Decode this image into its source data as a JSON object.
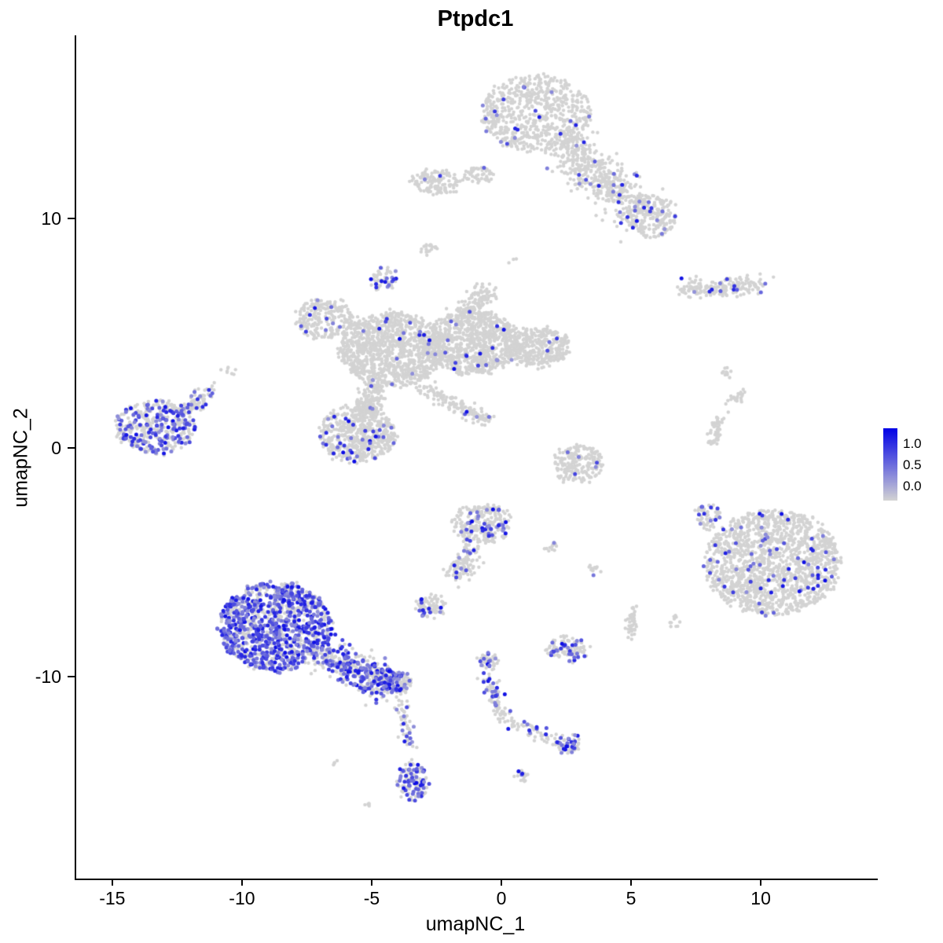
{
  "chart_data": {
    "type": "scatter",
    "title": "Ptpdc1",
    "xlabel": "umapNC_1",
    "ylabel": "umapNC_2",
    "xlim": [
      -16.45,
      14.45
    ],
    "ylim": [
      -18.8,
      18.0
    ],
    "grid": false,
    "point_color_low": "#D3D3D3",
    "point_color_high": "#0000E6",
    "x_ticks": [
      {
        "value": -15,
        "label": "-15"
      },
      {
        "value": -10,
        "label": "-10"
      },
      {
        "value": -5,
        "label": "-5"
      },
      {
        "value": 0,
        "label": "0"
      },
      {
        "value": 5,
        "label": "5"
      },
      {
        "value": 10,
        "label": "10"
      }
    ],
    "y_ticks": [
      {
        "value": 10,
        "label": "10"
      },
      {
        "value": 0,
        "label": "0"
      },
      {
        "value": -10,
        "label": "-10"
      }
    ],
    "legend": {
      "position": "right",
      "ticks": [
        {
          "label": "1.0",
          "pos": 0.21
        },
        {
          "label": "0.5",
          "pos": 0.5
        },
        {
          "label": "0.0",
          "pos": 0.79
        }
      ]
    },
    "clusters": [
      {
        "t": "e",
        "cx": 1.3,
        "cy": 14.6,
        "rx": 2.1,
        "ry": 1.7,
        "n": 650,
        "f": 0.03
      },
      {
        "t": "c",
        "x1": 2.3,
        "y1": 13.4,
        "x2": 5.2,
        "y2": 10.3,
        "r": 1.05,
        "n": 520,
        "f": 0.05
      },
      {
        "t": "e",
        "cx": 5.7,
        "cy": 10.1,
        "rx": 1.0,
        "ry": 0.9,
        "n": 200,
        "f": 0.06
      },
      {
        "t": "e",
        "cx": -2.6,
        "cy": 11.6,
        "rx": 0.95,
        "ry": 0.55,
        "n": 120,
        "f": 0.02
      },
      {
        "t": "e",
        "cx": -0.9,
        "cy": 11.9,
        "rx": 0.55,
        "ry": 0.35,
        "n": 50,
        "f": 0.02
      },
      {
        "t": "e",
        "cx": -2.9,
        "cy": 8.7,
        "rx": 0.3,
        "ry": 0.25,
        "n": 20,
        "f": 0
      },
      {
        "t": "e",
        "cx": -4.6,
        "cy": 7.4,
        "rx": 0.5,
        "ry": 0.45,
        "n": 55,
        "f": 0.3
      },
      {
        "t": "e",
        "cx": -6.9,
        "cy": 5.6,
        "rx": 1.15,
        "ry": 0.85,
        "n": 240,
        "f": 0.05
      },
      {
        "t": "e",
        "cx": -4.3,
        "cy": 4.3,
        "rx": 2.0,
        "ry": 1.6,
        "n": 1100,
        "f": 0.02
      },
      {
        "t": "e",
        "cx": -1.2,
        "cy": 4.6,
        "rx": 1.8,
        "ry": 1.4,
        "n": 900,
        "f": 0.015
      },
      {
        "t": "e",
        "cx": 1.3,
        "cy": 4.4,
        "rx": 1.3,
        "ry": 0.85,
        "n": 380,
        "f": 0.01
      },
      {
        "t": "c",
        "x1": -1.4,
        "y1": 5.9,
        "x2": -0.7,
        "y2": 6.8,
        "r": 0.5,
        "n": 110,
        "f": 0.02
      },
      {
        "t": "e",
        "cx": -5.6,
        "cy": 0.6,
        "rx": 1.5,
        "ry": 1.25,
        "n": 550,
        "f": 0.07
      },
      {
        "t": "c",
        "x1": -4.9,
        "y1": 2.6,
        "x2": -5.5,
        "y2": 1.4,
        "r": 0.55,
        "n": 150,
        "f": 0.03
      },
      {
        "t": "c",
        "x1": -3.2,
        "y1": 2.7,
        "x2": -0.6,
        "y2": 1.2,
        "r": 0.38,
        "n": 140,
        "f": 0.02
      },
      {
        "t": "e",
        "cx": -13.4,
        "cy": 0.9,
        "rx": 1.55,
        "ry": 1.15,
        "n": 420,
        "f": 0.35
      },
      {
        "t": "c",
        "x1": -12.3,
        "y1": 1.7,
        "x2": -11.3,
        "y2": 2.4,
        "r": 0.42,
        "n": 70,
        "f": 0.2
      },
      {
        "t": "e",
        "cx": 2.9,
        "cy": -0.7,
        "rx": 0.95,
        "ry": 0.8,
        "n": 200,
        "f": 0.02
      },
      {
        "t": "e",
        "cx": -0.8,
        "cy": -3.3,
        "rx": 1.15,
        "ry": 0.85,
        "n": 260,
        "f": 0.13
      },
      {
        "t": "c",
        "x1": -1.3,
        "y1": -4.3,
        "x2": -1.8,
        "y2": -5.6,
        "r": 0.45,
        "n": 120,
        "f": 0.08
      },
      {
        "t": "e",
        "cx": 10.4,
        "cy": -5.0,
        "rx": 2.6,
        "ry": 2.3,
        "n": 1500,
        "f": 0.045
      },
      {
        "t": "c",
        "x1": 8.15,
        "y1": 0.2,
        "x2": 8.3,
        "y2": 1.3,
        "r": 0.22,
        "n": 50,
        "f": 0
      },
      {
        "t": "c",
        "x1": 8.7,
        "y1": 1.9,
        "x2": 9.3,
        "y2": 2.4,
        "r": 0.25,
        "n": 25,
        "f": 0
      },
      {
        "t": "e",
        "cx": 8.6,
        "cy": 3.3,
        "rx": 0.2,
        "ry": 0.15,
        "n": 10,
        "f": 0
      },
      {
        "t": "c",
        "x1": 6.8,
        "y1": 6.9,
        "x2": 9.9,
        "y2": 7.15,
        "r": 0.45,
        "n": 190,
        "f": 0.06
      },
      {
        "t": "e",
        "cx": -8.8,
        "cy": -7.8,
        "rx": 2.2,
        "ry": 1.95,
        "n": 1150,
        "f": 0.55
      },
      {
        "t": "c",
        "x1": -6.9,
        "y1": -9.0,
        "x2": -4.3,
        "y2": -10.4,
        "r": 0.8,
        "n": 420,
        "f": 0.45
      },
      {
        "t": "e",
        "cx": -4.1,
        "cy": -10.2,
        "rx": 0.55,
        "ry": 0.5,
        "n": 100,
        "f": 0.5
      },
      {
        "t": "c",
        "x1": -3.9,
        "y1": -11.2,
        "x2": -3.6,
        "y2": -13.2,
        "r": 0.28,
        "n": 55,
        "f": 0.2
      },
      {
        "t": "e",
        "cx": -3.5,
        "cy": -14.6,
        "rx": 0.55,
        "ry": 0.85,
        "n": 130,
        "f": 0.5
      },
      {
        "t": "e",
        "cx": -2.8,
        "cy": -6.9,
        "rx": 0.6,
        "ry": 0.5,
        "n": 80,
        "f": 0.25
      },
      {
        "t": "e",
        "cx": -0.6,
        "cy": -9.3,
        "rx": 0.4,
        "ry": 0.35,
        "n": 45,
        "f": 0.3
      },
      {
        "t": "c",
        "x1": -0.6,
        "y1": -9.9,
        "x2": -0.1,
        "y2": -11.6,
        "r": 0.3,
        "n": 80,
        "f": 0.25
      },
      {
        "t": "c",
        "x1": 0.0,
        "y1": -11.8,
        "x2": 2.2,
        "y2": -12.9,
        "r": 0.26,
        "n": 60,
        "f": 0.2
      },
      {
        "t": "e",
        "cx": 2.5,
        "cy": -12.9,
        "rx": 0.45,
        "ry": 0.4,
        "n": 60,
        "f": 0.45
      },
      {
        "t": "e",
        "cx": 0.7,
        "cy": -14.3,
        "rx": 0.3,
        "ry": 0.25,
        "n": 18,
        "f": 0.3
      },
      {
        "t": "e",
        "cx": 2.5,
        "cy": -8.8,
        "rx": 0.8,
        "ry": 0.55,
        "n": 110,
        "f": 0.25
      },
      {
        "t": "c",
        "x1": 4.95,
        "y1": -8.1,
        "x2": 5.05,
        "y2": -7.0,
        "r": 0.2,
        "n": 45,
        "f": 0
      },
      {
        "t": "e",
        "cx": 3.5,
        "cy": -5.3,
        "rx": 0.25,
        "ry": 0.2,
        "n": 12,
        "f": 0.1
      },
      {
        "t": "e",
        "cx": 1.9,
        "cy": -4.4,
        "rx": 0.3,
        "ry": 0.2,
        "n": 12,
        "f": 0.1
      },
      {
        "t": "e",
        "cx": -10.5,
        "cy": 3.35,
        "rx": 0.25,
        "ry": 0.15,
        "n": 8,
        "f": 0
      },
      {
        "t": "e",
        "cx": 7.9,
        "cy": -3.0,
        "rx": 0.45,
        "ry": 0.6,
        "n": 60,
        "f": 0.05
      },
      {
        "t": "e",
        "cx": 0.3,
        "cy": 8.2,
        "rx": 0.12,
        "ry": 0.1,
        "n": 3,
        "f": 0
      },
      {
        "t": "e",
        "cx": -6.4,
        "cy": -13.8,
        "rx": 0.15,
        "ry": 0.12,
        "n": 4,
        "f": 0
      },
      {
        "t": "e",
        "cx": -5.1,
        "cy": -15.6,
        "rx": 0.2,
        "ry": 0.12,
        "n": 5,
        "f": 0
      },
      {
        "t": "e",
        "cx": 6.6,
        "cy": -7.6,
        "rx": 0.2,
        "ry": 0.3,
        "n": 10,
        "f": 0
      }
    ]
  }
}
